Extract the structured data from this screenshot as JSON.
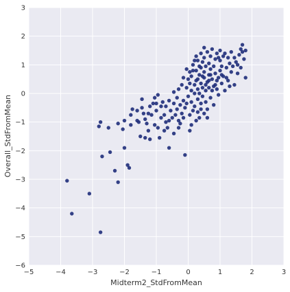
{
  "chart_data": {
    "type": "scatter",
    "xlabel": "Midterm2_StdFromMean",
    "ylabel": "Overall_StdFromMean",
    "xlim": [
      -5,
      3
    ],
    "ylim": [
      -6,
      3
    ],
    "xticks": [
      -5,
      -4,
      -3,
      -2,
      -1,
      0,
      1,
      2,
      3
    ],
    "yticks": [
      -6,
      -5,
      -4,
      -3,
      -2,
      -1,
      0,
      1,
      2,
      3
    ],
    "xtick_labels": [
      "−5",
      "−4",
      "−3",
      "−2",
      "−1",
      "0",
      "1",
      "2",
      "3"
    ],
    "ytick_labels": [
      "−6",
      "−5",
      "−4",
      "−3",
      "−2",
      "−1",
      "0",
      "1",
      "2",
      "3"
    ],
    "grid": true,
    "colors": {
      "background": "#eaeaf2",
      "grid": "#ffffff",
      "marker": "#1f2d7a"
    },
    "points": [
      [
        -3.8,
        -3.05
      ],
      [
        -3.65,
        -4.2
      ],
      [
        -3.1,
        -3.5
      ],
      [
        -2.75,
        -4.85
      ],
      [
        -2.8,
        -1.15
      ],
      [
        -2.75,
        -1.0
      ],
      [
        -2.7,
        -2.2
      ],
      [
        -2.5,
        -1.2
      ],
      [
        -2.45,
        -2.05
      ],
      [
        -2.3,
        -2.7
      ],
      [
        -2.2,
        -3.1
      ],
      [
        -2.2,
        -1.05
      ],
      [
        -2.05,
        -1.25
      ],
      [
        -2.0,
        -1.9
      ],
      [
        -1.9,
        -2.5
      ],
      [
        -1.85,
        -2.6
      ],
      [
        -1.8,
        -1.1
      ],
      [
        -1.8,
        -0.75
      ],
      [
        -1.75,
        -0.55
      ],
      [
        -1.6,
        -0.6
      ],
      [
        -1.55,
        -1.0
      ],
      [
        -1.5,
        -1.5
      ],
      [
        -1.45,
        -0.5
      ],
      [
        -1.45,
        -0.2
      ],
      [
        -1.4,
        -0.7
      ],
      [
        -1.35,
        -0.9
      ],
      [
        -1.3,
        -1.05
      ],
      [
        -1.25,
        -1.3
      ],
      [
        -1.2,
        -1.6
      ],
      [
        -1.2,
        -0.45
      ],
      [
        -1.15,
        -0.75
      ],
      [
        -1.1,
        -0.35
      ],
      [
        -1.05,
        -0.15
      ],
      [
        -1.05,
        -1.1
      ],
      [
        -1.0,
        -0.6
      ],
      [
        -0.95,
        -1.2
      ],
      [
        -0.95,
        -0.05
      ],
      [
        -0.9,
        -1.55
      ],
      [
        -0.85,
        -0.85
      ],
      [
        -0.8,
        -0.3
      ],
      [
        -0.75,
        -0.75
      ],
      [
        -0.7,
        -1.0
      ],
      [
        -0.7,
        -0.45
      ],
      [
        -0.65,
        -1.2
      ],
      [
        -0.6,
        -0.25
      ],
      [
        -0.6,
        -1.9
      ],
      [
        -0.55,
        -0.6
      ],
      [
        -0.5,
        -0.85
      ],
      [
        -0.45,
        -0.35
      ],
      [
        -0.45,
        -1.4
      ],
      [
        -0.4,
        -0.75
      ],
      [
        -0.35,
        -0.55
      ],
      [
        -0.35,
        -0.15
      ],
      [
        -0.3,
        -1.2
      ],
      [
        -0.3,
        0.15
      ],
      [
        -0.25,
        -0.4
      ],
      [
        -0.25,
        -1.05
      ],
      [
        -0.2,
        0.3
      ],
      [
        -0.2,
        -0.7
      ],
      [
        -0.15,
        -0.25
      ],
      [
        -0.15,
        0.55
      ],
      [
        -0.1,
        -2.15
      ],
      [
        -0.1,
        -0.5
      ],
      [
        -0.05,
        0.2
      ],
      [
        -0.05,
        0.85
      ],
      [
        0.0,
        -0.1
      ],
      [
        0.0,
        0.5
      ],
      [
        0.05,
        -0.75
      ],
      [
        0.05,
        0.35
      ],
      [
        0.05,
        0.75
      ],
      [
        0.1,
        -1.1
      ],
      [
        0.1,
        -0.3
      ],
      [
        0.1,
        0.1
      ],
      [
        0.1,
        0.6
      ],
      [
        0.15,
        1.0
      ],
      [
        0.15,
        -0.6
      ],
      [
        0.2,
        0.3
      ],
      [
        0.2,
        -0.45
      ],
      [
        0.2,
        0.0
      ],
      [
        0.25,
        1.3
      ],
      [
        0.25,
        -0.95
      ],
      [
        0.25,
        0.8
      ],
      [
        0.3,
        0.5
      ],
      [
        0.3,
        -0.2
      ],
      [
        0.3,
        0.15
      ],
      [
        0.3,
        1.15
      ],
      [
        0.35,
        -0.85
      ],
      [
        0.35,
        0.65
      ],
      [
        0.35,
        0.0
      ],
      [
        0.4,
        0.35
      ],
      [
        0.4,
        -0.55
      ],
      [
        0.4,
        1.4
      ],
      [
        0.4,
        0.9
      ],
      [
        0.45,
        0.2
      ],
      [
        0.45,
        -0.1
      ],
      [
        0.45,
        1.1
      ],
      [
        0.5,
        0.55
      ],
      [
        0.5,
        -0.7
      ],
      [
        0.5,
        0.75
      ],
      [
        0.5,
        1.25
      ],
      [
        0.55,
        0.1
      ],
      [
        0.55,
        -0.3
      ],
      [
        0.55,
        0.95
      ],
      [
        0.6,
        0.4
      ],
      [
        0.6,
        1.45
      ],
      [
        0.6,
        -0.55
      ],
      [
        0.65,
        0.65
      ],
      [
        0.65,
        0.2
      ],
      [
        0.65,
        1.05
      ],
      [
        0.7,
        0.85
      ],
      [
        0.7,
        -0.15
      ],
      [
        0.7,
        1.3
      ],
      [
        0.75,
        0.5
      ],
      [
        0.75,
        1.55
      ],
      [
        0.8,
        0.25
      ],
      [
        0.8,
        0.95
      ],
      [
        0.8,
        -0.4
      ],
      [
        0.85,
        0.7
      ],
      [
        0.85,
        1.2
      ],
      [
        0.9,
        0.15
      ],
      [
        0.9,
        1.4
      ],
      [
        0.95,
        0.55
      ],
      [
        0.95,
        -0.05
      ],
      [
        1.0,
        0.8
      ],
      [
        1.0,
        1.15
      ],
      [
        1.0,
        1.5
      ],
      [
        1.05,
        0.35
      ],
      [
        1.05,
        0.95
      ],
      [
        1.1,
        1.3
      ],
      [
        1.1,
        0.6
      ],
      [
        1.15,
        0.1
      ],
      [
        1.2,
        0.9
      ],
      [
        1.25,
        1.25
      ],
      [
        1.25,
        0.45
      ],
      [
        1.3,
        1.05
      ],
      [
        1.35,
        0.75
      ],
      [
        1.35,
        1.45
      ],
      [
        1.4,
        0.95
      ],
      [
        1.45,
        0.3
      ],
      [
        1.5,
        1.1
      ],
      [
        1.55,
        0.7
      ],
      [
        1.6,
        1.35
      ],
      [
        1.65,
        0.9
      ],
      [
        1.7,
        1.45
      ],
      [
        1.75,
        1.2
      ],
      [
        1.8,
        0.55
      ],
      [
        1.8,
        1.5
      ],
      [
        1.7,
        1.7
      ],
      [
        1.65,
        1.55
      ],
      [
        -0.05,
        -0.35
      ],
      [
        0.25,
        0.45
      ],
      [
        0.45,
        0.6
      ],
      [
        0.65,
        0.45
      ],
      [
        0.85,
        0.3
      ],
      [
        1.05,
        0.65
      ],
      [
        1.2,
        0.55
      ],
      [
        0.15,
        0.8
      ],
      [
        0.35,
        0.95
      ],
      [
        0.55,
        0.3
      ],
      [
        0.75,
        0.1
      ],
      [
        -0.45,
        0.05
      ],
      [
        -0.6,
        -0.95
      ],
      [
        -0.85,
        -0.45
      ],
      [
        -1.25,
        -0.7
      ],
      [
        -1.6,
        -0.95
      ],
      [
        -2.0,
        -0.95
      ],
      [
        -0.15,
        -0.85
      ],
      [
        0.05,
        -1.3
      ],
      [
        0.3,
        -0.65
      ],
      [
        0.6,
        -0.85
      ],
      [
        0.9,
        0.45
      ],
      [
        1.15,
        1.4
      ],
      [
        1.45,
        1.25
      ],
      [
        0.95,
        1.25
      ],
      [
        -0.3,
        -0.95
      ],
      [
        -0.75,
        -1.3
      ],
      [
        -1.0,
        -0.35
      ],
      [
        -1.35,
        -1.55
      ],
      [
        0.5,
        1.6
      ],
      [
        0.2,
        1.15
      ],
      [
        0.4,
        -0.35
      ],
      [
        0.7,
        0.65
      ],
      [
        1.3,
        0.25
      ],
      [
        1.55,
        1.0
      ]
    ]
  }
}
